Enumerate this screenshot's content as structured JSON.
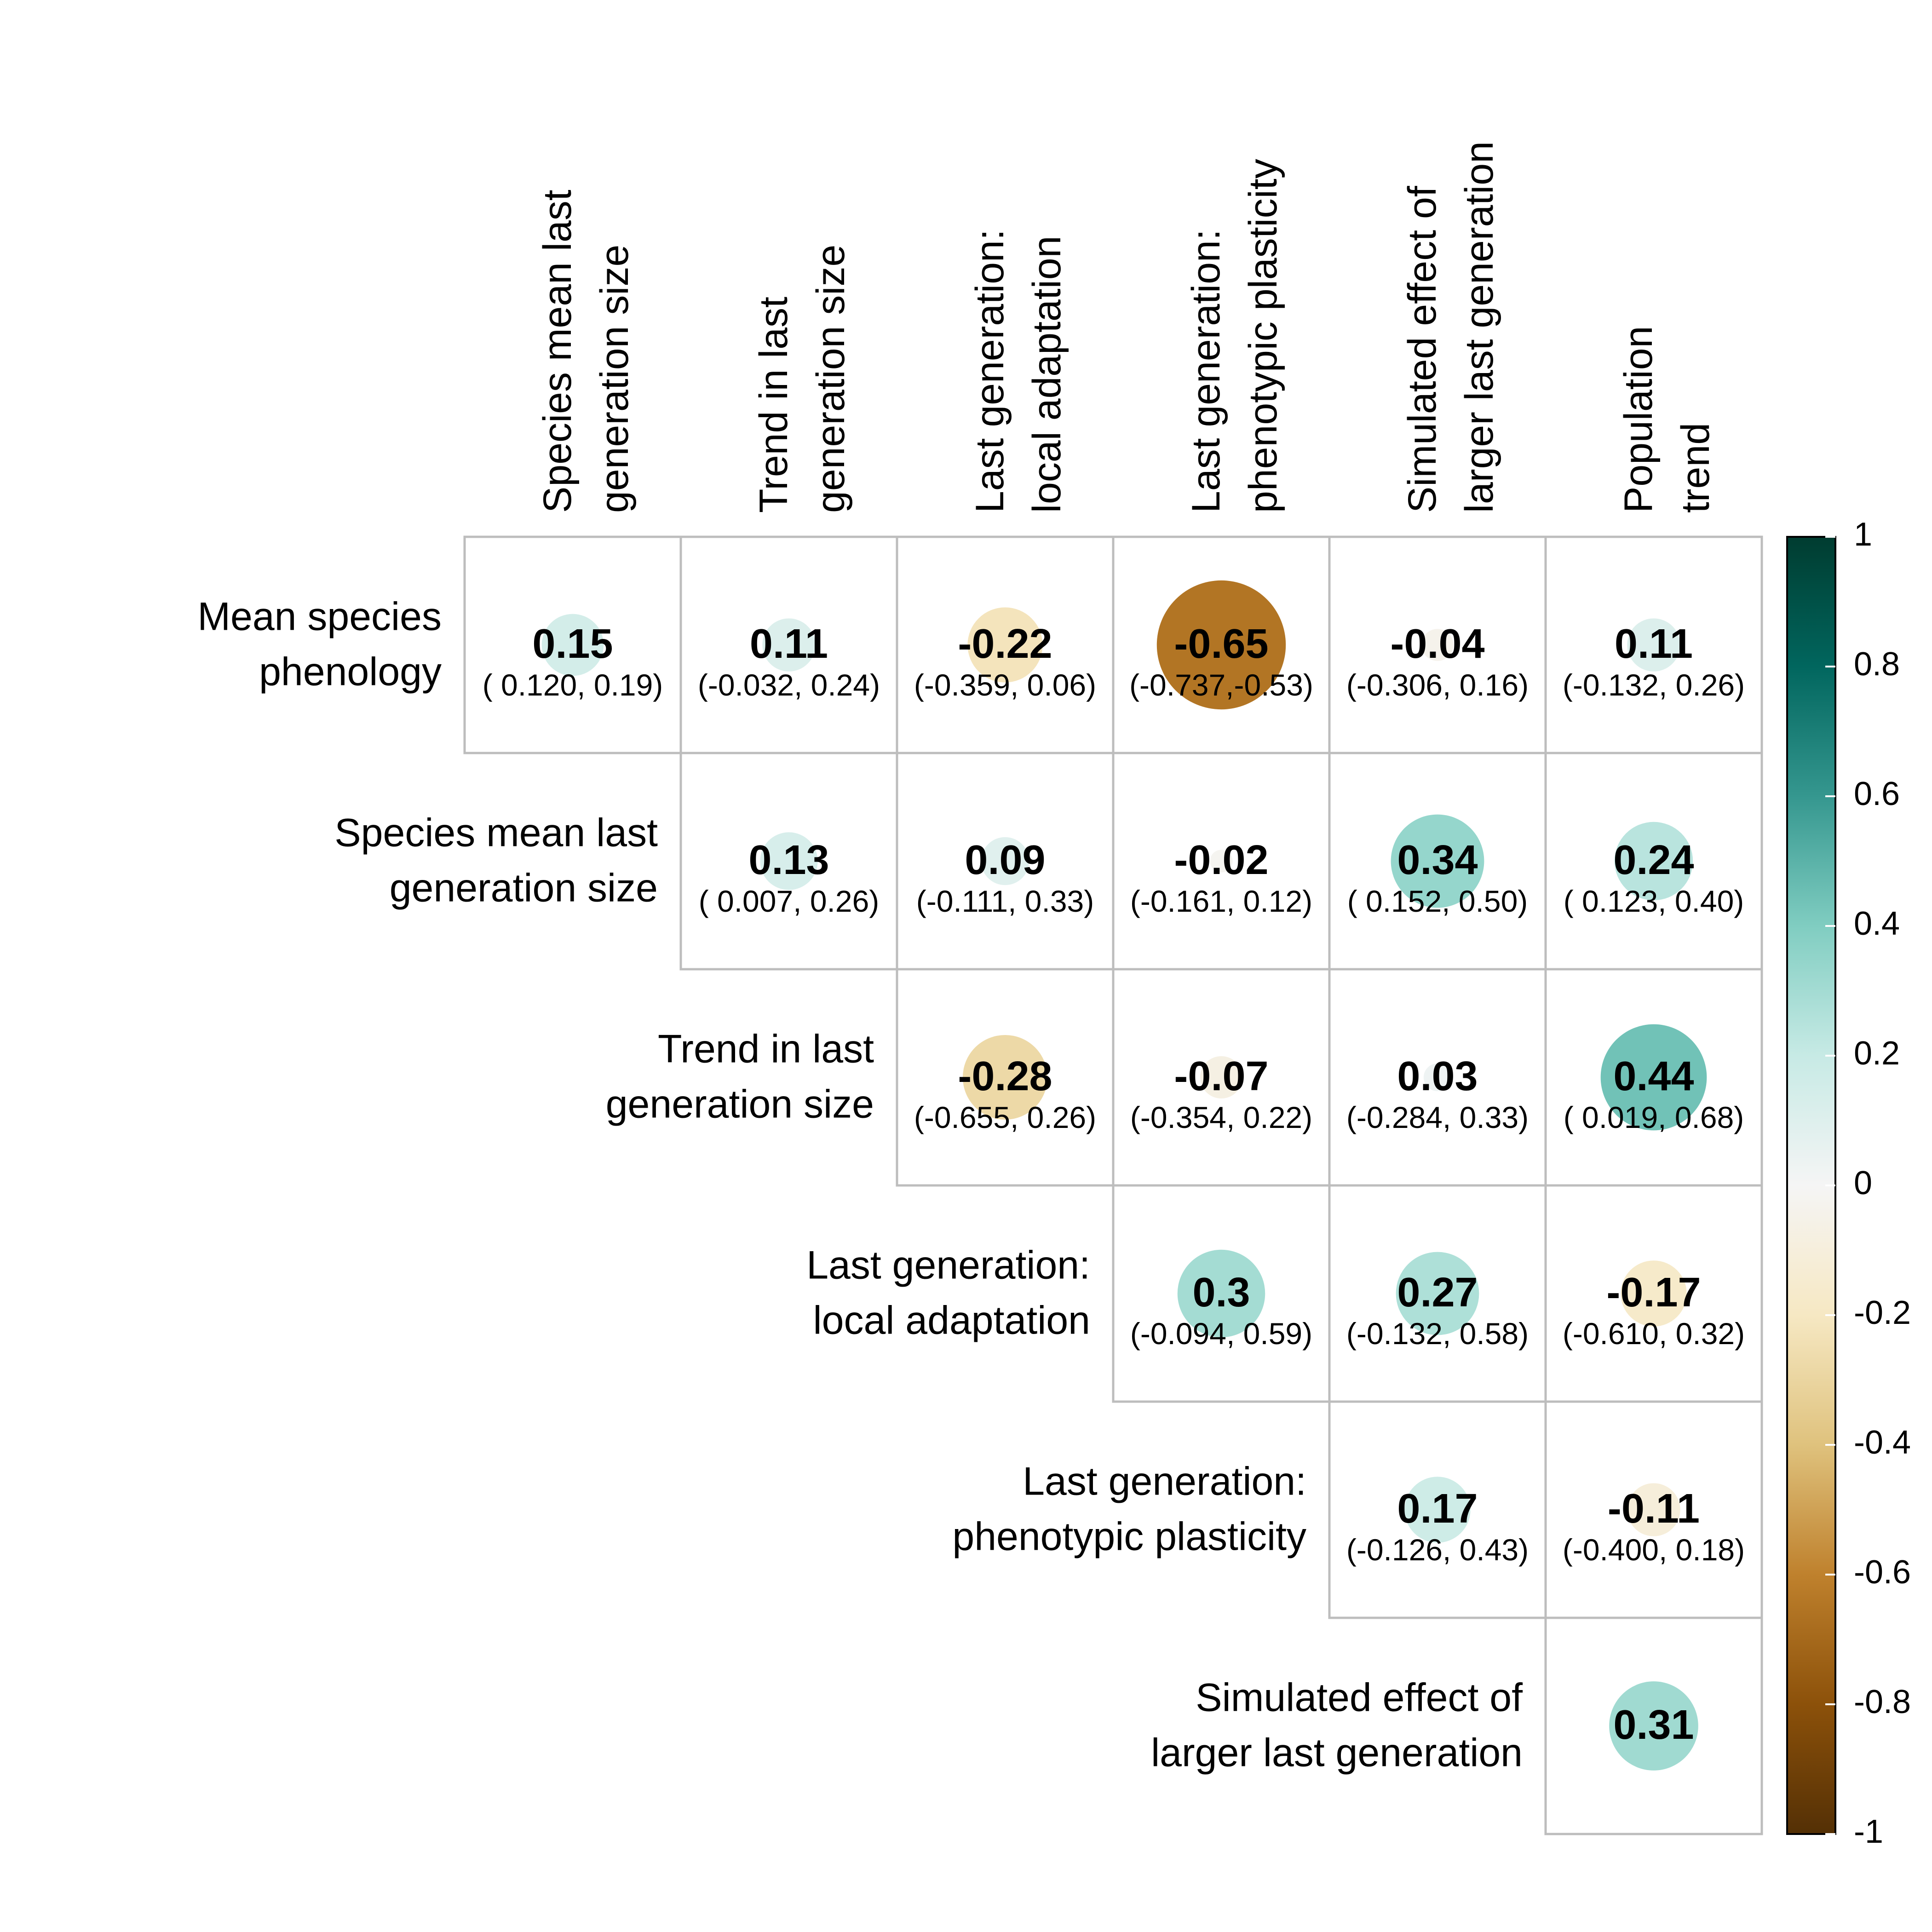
{
  "chart_data": {
    "type": "heatmap",
    "subtype": "correlation-circle-upper-triangle",
    "columns": [
      {
        "line1": "Species mean last",
        "line2": "generation size"
      },
      {
        "line1": "Trend in last",
        "line2": "generation size"
      },
      {
        "line1": "Last generation:",
        "line2": "local adaptation"
      },
      {
        "line1": "Last generation:",
        "line2": "phenotypic plasticity"
      },
      {
        "line1": "Simulated effect of",
        "line2": "larger last generation"
      },
      {
        "line1": "Population",
        "line2": "trend"
      }
    ],
    "rows": [
      {
        "line1": "Mean species",
        "line2": "phenology"
      },
      {
        "line1": "Species mean last",
        "line2": "generation size"
      },
      {
        "line1": "Trend in last",
        "line2": "generation size"
      },
      {
        "line1": "Last generation:",
        "line2": "local adaptation"
      },
      {
        "line1": "Last generation:",
        "line2": "phenotypic plasticity"
      },
      {
        "line1": "Simulated effect of",
        "line2": "larger last generation"
      }
    ],
    "cells": [
      {
        "row": 0,
        "col": 0,
        "value": 0.15,
        "label": "0.15",
        "ci": "( 0.120, 0.19)"
      },
      {
        "row": 0,
        "col": 1,
        "value": 0.11,
        "label": "0.11",
        "ci": "(-0.032, 0.24)"
      },
      {
        "row": 0,
        "col": 2,
        "value": -0.22,
        "label": "-0.22",
        "ci": "(-0.359, 0.06)"
      },
      {
        "row": 0,
        "col": 3,
        "value": -0.65,
        "label": "-0.65",
        "ci": "(-0.737,-0.53)"
      },
      {
        "row": 0,
        "col": 4,
        "value": -0.04,
        "label": "-0.04",
        "ci": "(-0.306, 0.16)"
      },
      {
        "row": 0,
        "col": 5,
        "value": 0.11,
        "label": "0.11",
        "ci": "(-0.132, 0.26)"
      },
      {
        "row": 1,
        "col": 1,
        "value": 0.13,
        "label": "0.13",
        "ci": "( 0.007, 0.26)"
      },
      {
        "row": 1,
        "col": 2,
        "value": 0.09,
        "label": "0.09",
        "ci": "(-0.111, 0.33)"
      },
      {
        "row": 1,
        "col": 3,
        "value": -0.02,
        "label": "-0.02",
        "ci": "(-0.161, 0.12)"
      },
      {
        "row": 1,
        "col": 4,
        "value": 0.34,
        "label": "0.34",
        "ci": "( 0.152, 0.50)"
      },
      {
        "row": 1,
        "col": 5,
        "value": 0.24,
        "label": "0.24",
        "ci": "( 0.123, 0.40)"
      },
      {
        "row": 2,
        "col": 2,
        "value": -0.28,
        "label": "-0.28",
        "ci": "(-0.655, 0.26)"
      },
      {
        "row": 2,
        "col": 3,
        "value": -0.07,
        "label": "-0.07",
        "ci": "(-0.354, 0.22)"
      },
      {
        "row": 2,
        "col": 4,
        "value": 0.03,
        "label": "0.03",
        "ci": "(-0.284, 0.33)"
      },
      {
        "row": 2,
        "col": 5,
        "value": 0.44,
        "label": "0.44",
        "ci": "( 0.019, 0.68)"
      },
      {
        "row": 3,
        "col": 3,
        "value": 0.3,
        "label": "0.3",
        "ci": "(-0.094, 0.59)"
      },
      {
        "row": 3,
        "col": 4,
        "value": 0.27,
        "label": "0.27",
        "ci": "(-0.132, 0.58)"
      },
      {
        "row": 3,
        "col": 5,
        "value": -0.17,
        "label": "-0.17",
        "ci": "(-0.610, 0.32)"
      },
      {
        "row": 4,
        "col": 4,
        "value": 0.17,
        "label": "0.17",
        "ci": "(-0.126, 0.43)"
      },
      {
        "row": 4,
        "col": 5,
        "value": -0.11,
        "label": "-0.11",
        "ci": "(-0.400, 0.18)"
      },
      {
        "row": 5,
        "col": 5,
        "value": 0.31,
        "label": "0.31",
        "ci": ""
      }
    ],
    "colorbar": {
      "range": [
        -1,
        1
      ],
      "ticks": [
        "1",
        "0.8",
        "0.6",
        "0.4",
        "0.2",
        "0",
        "-0.2",
        "-0.4",
        "-0.6",
        "-0.8",
        "-1"
      ],
      "palette": [
        "#543005",
        "#8c510a",
        "#bf812d",
        "#dfc27d",
        "#f6e8c3",
        "#f5f5f5",
        "#c7eae5",
        "#80cdc1",
        "#35978f",
        "#01665e",
        "#003c30"
      ]
    },
    "grid": true
  }
}
